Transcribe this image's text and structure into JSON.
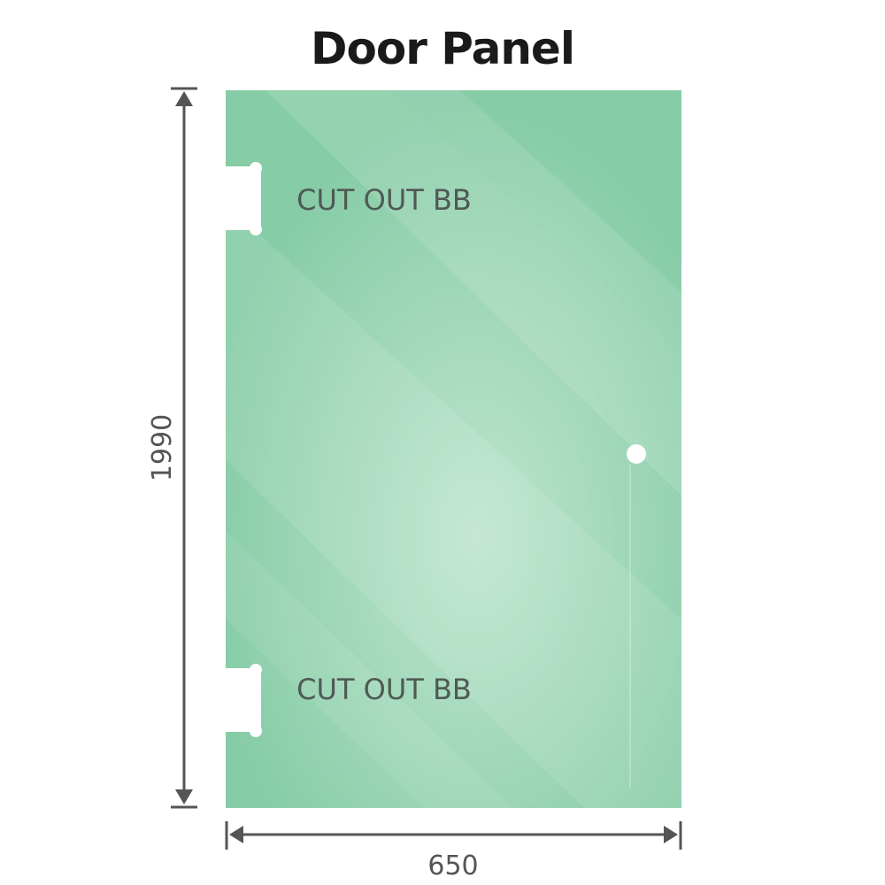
{
  "title": "Door Panel",
  "labels": {
    "cutout_top": "CUT OUT BB",
    "cutout_bottom": "CUT OUT BB"
  },
  "dimensions": {
    "height": "1990",
    "width": "650"
  },
  "colors": {
    "glass": "#8dcfab",
    "glass_light": "#b9e3cc",
    "dimension_line": "#555555",
    "title": "#1a1a1a"
  }
}
